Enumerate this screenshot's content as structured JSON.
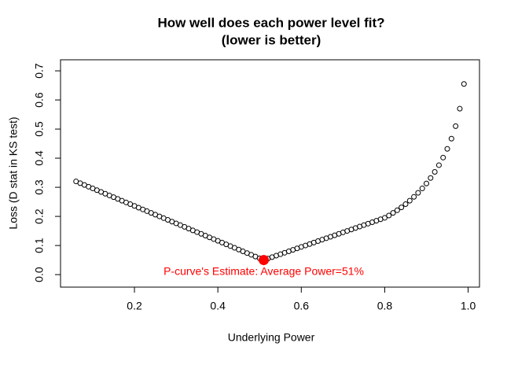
{
  "chart_data": {
    "type": "scatter",
    "title": "How well does each power level fit?",
    "subtitle": "(lower is better)",
    "x_label": "Underlying Power",
    "y_label": "Loss (D stat in KS test)",
    "annotation": "P-curve's Estimate: Average Power=51%",
    "highlight": {
      "x": 0.51,
      "y": 0.05,
      "color": "#ff0000"
    },
    "color": "#000000",
    "x": [
      0.06,
      0.07,
      0.08,
      0.09,
      0.1,
      0.11,
      0.12,
      0.13,
      0.14,
      0.15,
      0.16,
      0.17,
      0.18,
      0.19,
      0.2,
      0.21,
      0.22,
      0.23,
      0.24,
      0.25,
      0.26,
      0.27,
      0.28,
      0.29,
      0.3,
      0.31,
      0.32,
      0.33,
      0.34,
      0.35,
      0.36,
      0.37,
      0.38,
      0.39,
      0.4,
      0.41,
      0.42,
      0.43,
      0.44,
      0.45,
      0.46,
      0.47,
      0.48,
      0.49,
      0.5,
      0.51,
      0.52,
      0.53,
      0.54,
      0.55,
      0.56,
      0.57,
      0.58,
      0.59,
      0.6,
      0.61,
      0.62,
      0.63,
      0.64,
      0.65,
      0.66,
      0.67,
      0.68,
      0.69,
      0.7,
      0.71,
      0.72,
      0.73,
      0.74,
      0.75,
      0.76,
      0.77,
      0.78,
      0.79,
      0.8,
      0.81,
      0.82,
      0.83,
      0.84,
      0.85,
      0.86,
      0.87,
      0.88,
      0.89,
      0.9,
      0.91,
      0.92,
      0.93,
      0.94,
      0.95,
      0.96,
      0.97,
      0.98,
      0.99
    ],
    "values": [
      0.32,
      0.314,
      0.308,
      0.302,
      0.296,
      0.29,
      0.284,
      0.278,
      0.272,
      0.266,
      0.26,
      0.254,
      0.248,
      0.242,
      0.236,
      0.23,
      0.224,
      0.218,
      0.212,
      0.206,
      0.2,
      0.194,
      0.188,
      0.182,
      0.176,
      0.17,
      0.164,
      0.158,
      0.152,
      0.146,
      0.14,
      0.134,
      0.128,
      0.122,
      0.116,
      0.11,
      0.104,
      0.098,
      0.092,
      0.086,
      0.08,
      0.074,
      0.068,
      0.062,
      0.056,
      0.05,
      0.055,
      0.06,
      0.065,
      0.07,
      0.075,
      0.08,
      0.085,
      0.09,
      0.095,
      0.1,
      0.105,
      0.11,
      0.115,
      0.12,
      0.125,
      0.13,
      0.135,
      0.14,
      0.145,
      0.15,
      0.155,
      0.16,
      0.165,
      0.17,
      0.175,
      0.18,
      0.185,
      0.19,
      0.195,
      0.203,
      0.212,
      0.221,
      0.231,
      0.242,
      0.254,
      0.267,
      0.281,
      0.296,
      0.313,
      0.332,
      0.353,
      0.376,
      0.402,
      0.432,
      0.467,
      0.51,
      0.57,
      0.655
    ],
    "xlim": [
      0.0228,
      1.0272
    ],
    "ylim": [
      -0.043,
      0.738
    ],
    "xticks": [
      0.2,
      0.4,
      0.6,
      0.8,
      {
        "value": 1,
        "label": "1.0"
      }
    ],
    "yticks": [
      {
        "value": 0,
        "label": "0.0"
      },
      0.1,
      0.2,
      0.3,
      0.4,
      0.5,
      0.6,
      0.7
    ]
  }
}
